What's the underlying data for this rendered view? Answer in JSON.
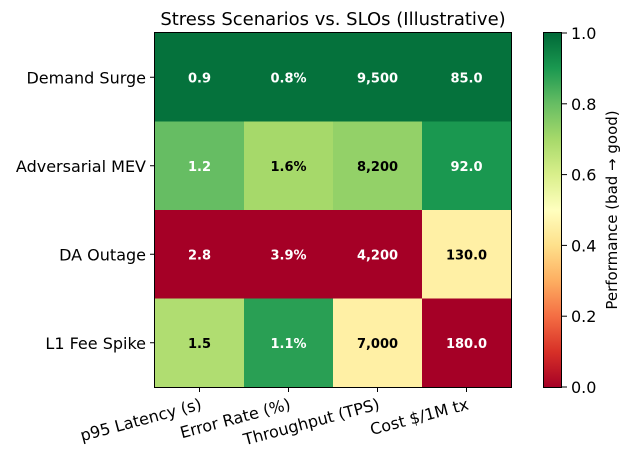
{
  "chart_data": {
    "type": "heatmap",
    "title": "Stress Scenarios vs. SLOs (Illustrative)",
    "xlabel": "",
    "ylabel": "",
    "columns": [
      "p95 Latency (s)",
      "Error Rate (%)",
      "Throughput (TPS)",
      "Cost $/1M tx"
    ],
    "rows": [
      "Demand Surge",
      "Adversarial MEV",
      "DA Outage",
      "L1 Fee Spike"
    ],
    "cell_labels": [
      [
        "0.9",
        "0.8%",
        "9,500",
        "85.0"
      ],
      [
        "1.2",
        "1.6%",
        "8,200",
        "92.0"
      ],
      [
        "2.8",
        "3.9%",
        "4,200",
        "130.0"
      ],
      [
        "1.5",
        "1.1%",
        "7,000",
        "180.0"
      ]
    ],
    "scores": [
      [
        0.98,
        0.98,
        0.98,
        0.98
      ],
      [
        0.8,
        0.7,
        0.73,
        0.9
      ],
      [
        0.0,
        0.0,
        0.0,
        0.45
      ],
      [
        0.68,
        0.88,
        0.45,
        0.0
      ]
    ],
    "label_colors": [
      [
        "#ffffff",
        "#ffffff",
        "#ffffff",
        "#ffffff"
      ],
      [
        "#ffffff",
        "#000000",
        "#000000",
        "#ffffff"
      ],
      [
        "#ffffff",
        "#ffffff",
        "#ffffff",
        "#000000"
      ],
      [
        "#000000",
        "#ffffff",
        "#000000",
        "#ffffff"
      ]
    ],
    "colorbar": {
      "label": "Performance (bad → good)",
      "range": [
        0.0,
        1.0
      ],
      "ticks": [
        "0.0",
        "0.2",
        "0.4",
        "0.6",
        "0.8",
        "1.0"
      ],
      "colormap": "RdYlGn"
    }
  }
}
